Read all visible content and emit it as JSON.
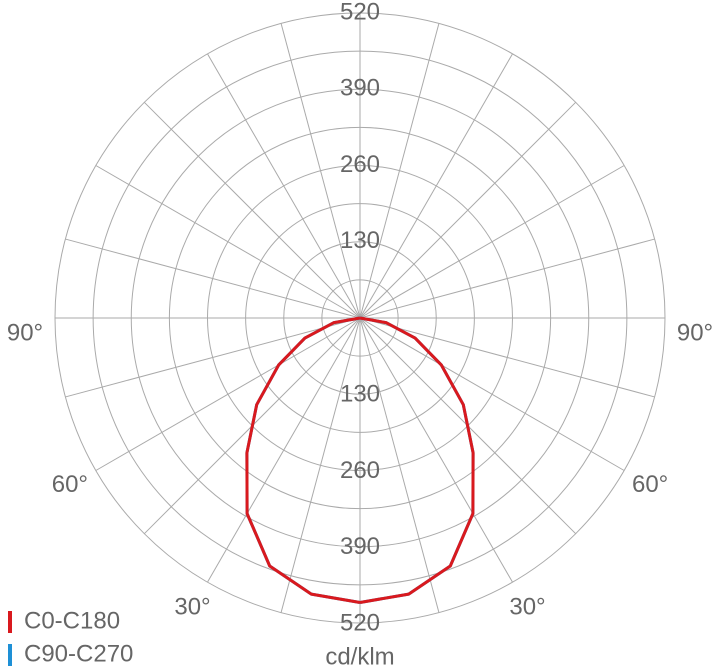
{
  "chart_data": {
    "type": "polar",
    "unit": "cd/klm",
    "angles": [
      0,
      10,
      20,
      30,
      40,
      50,
      60,
      70,
      80,
      90
    ],
    "series": [
      {
        "name": "C90-C270",
        "color": "#1e90d6",
        "values": [
          485,
          478,
          450,
          385,
          300,
          230,
          160,
          100,
          45,
          0
        ]
      },
      {
        "name": "C0-C180",
        "color": "#d9191e",
        "values": [
          485,
          478,
          450,
          385,
          300,
          230,
          160,
          100,
          45,
          0
        ]
      }
    ],
    "rlim": [
      0,
      520
    ],
    "rgrid": [
      65,
      130,
      195,
      260,
      325,
      390,
      455,
      520
    ],
    "rticks": [
      130,
      260,
      390,
      520
    ],
    "theta_step": 15,
    "theta_ticks": [
      {
        "value": 30,
        "label": "30°"
      },
      {
        "value": 60,
        "label": "60°"
      },
      {
        "value": 90,
        "label": "90°"
      }
    ]
  }
}
